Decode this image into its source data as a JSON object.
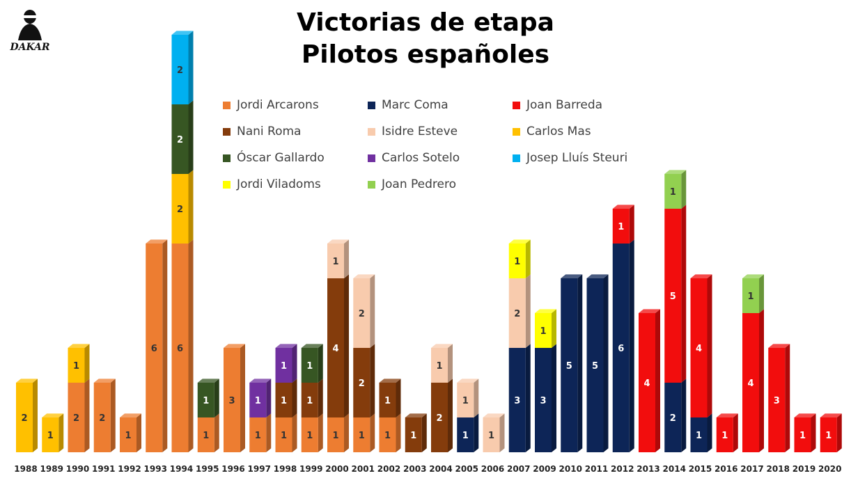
{
  "title_line1": "Victorias de etapa",
  "title_line2": "Pilotos españoles",
  "logo_text": "DAKAR",
  "colors": {
    "Jordi Arcarons": "#ED7D31",
    "Marc Coma": "#0D2557",
    "Joan Barreda": "#F20D0D",
    "Nani Roma": "#843C0C",
    "Isidre Esteve": "#F8CBAD",
    "Carlos Mas": "#FFC000",
    "Óscar Gallardo": "#375623",
    "Carlos Sotelo": "#7030A0",
    "Josep Lluís Steuri": "#00B0F0",
    "Jordi Viladoms": "#FFFF00",
    "Joan Pedrero": "#92D050"
  },
  "chart_data": {
    "type": "bar",
    "stacked": true,
    "title": "Victorias de etapa / Pilotos españoles",
    "legend_position": "top-center",
    "legend": [
      "Jordi Arcarons",
      "Marc Coma",
      "Joan Barreda",
      "Nani Roma",
      "Isidre Esteve",
      "Carlos Mas",
      "Óscar Gallardo",
      "Carlos Sotelo",
      "Josep Lluís Steuri",
      "Jordi Viladoms",
      "Joan Pedrero"
    ],
    "categories": [
      "1988",
      "1989",
      "1990",
      "1991",
      "1992",
      "1993",
      "1994",
      "1995",
      "1996",
      "1997",
      "1998",
      "1999",
      "2000",
      "2001",
      "2002",
      "2003",
      "2004",
      "2005",
      "2006",
      "2007",
      "2009",
      "2010",
      "2011",
      "2012",
      "2013",
      "2014",
      "2015",
      "2016",
      "2017",
      "2018",
      "2019",
      "2020"
    ],
    "stacks": [
      [
        [
          "Carlos Mas",
          2
        ]
      ],
      [
        [
          "Carlos Mas",
          1
        ]
      ],
      [
        [
          "Jordi Arcarons",
          2
        ],
        [
          "Carlos Mas",
          1
        ]
      ],
      [
        [
          "Jordi Arcarons",
          2
        ]
      ],
      [
        [
          "Jordi Arcarons",
          1
        ]
      ],
      [
        [
          "Jordi Arcarons",
          6
        ]
      ],
      [
        [
          "Jordi Arcarons",
          6
        ],
        [
          "Carlos Mas",
          2
        ],
        [
          "Óscar Gallardo",
          2
        ],
        [
          "Josep Lluís Steuri",
          2
        ]
      ],
      [
        [
          "Jordi Arcarons",
          1
        ],
        [
          "Óscar Gallardo",
          1
        ]
      ],
      [
        [
          "Jordi Arcarons",
          3
        ]
      ],
      [
        [
          "Jordi Arcarons",
          1
        ],
        [
          "Carlos Sotelo",
          1
        ]
      ],
      [
        [
          "Jordi Arcarons",
          1
        ],
        [
          "Nani Roma",
          1
        ],
        [
          "Carlos Sotelo",
          1
        ]
      ],
      [
        [
          "Jordi Arcarons",
          1
        ],
        [
          "Nani Roma",
          1
        ],
        [
          "Óscar Gallardo",
          1
        ]
      ],
      [
        [
          "Jordi Arcarons",
          1
        ],
        [
          "Nani Roma",
          4
        ],
        [
          "Isidre Esteve",
          1
        ]
      ],
      [
        [
          "Jordi Arcarons",
          1
        ],
        [
          "Nani Roma",
          2
        ],
        [
          "Isidre Esteve",
          2
        ]
      ],
      [
        [
          "Jordi Arcarons",
          1
        ],
        [
          "Nani Roma",
          1
        ]
      ],
      [
        [
          "Nani Roma",
          1
        ]
      ],
      [
        [
          "Nani Roma",
          2
        ],
        [
          "Isidre Esteve",
          1
        ]
      ],
      [
        [
          "Marc Coma",
          1
        ],
        [
          "Isidre Esteve",
          1
        ]
      ],
      [
        [
          "Isidre Esteve",
          1
        ]
      ],
      [
        [
          "Marc Coma",
          3
        ],
        [
          "Isidre Esteve",
          2
        ],
        [
          "Jordi Viladoms",
          1
        ]
      ],
      [
        [
          "Marc Coma",
          3
        ],
        [
          "Jordi Viladoms",
          1
        ]
      ],
      [
        [
          "Marc Coma",
          5
        ]
      ],
      [
        [
          "Marc Coma",
          5
        ]
      ],
      [
        [
          "Marc Coma",
          6
        ],
        [
          "Joan Barreda",
          1
        ]
      ],
      [
        [
          "Joan Barreda",
          4
        ]
      ],
      [
        [
          "Marc Coma",
          2
        ],
        [
          "Joan Barreda",
          5
        ],
        [
          "Joan Pedrero",
          1
        ]
      ],
      [
        [
          "Marc Coma",
          1
        ],
        [
          "Joan Barreda",
          4
        ]
      ],
      [
        [
          "Joan Barreda",
          1
        ]
      ],
      [
        [
          "Joan Barreda",
          4
        ],
        [
          "Joan Pedrero",
          1
        ]
      ],
      [
        [
          "Joan Barreda",
          3
        ]
      ],
      [
        [
          "Joan Barreda",
          1
        ]
      ],
      [
        [
          "Joan Barreda",
          1
        ]
      ]
    ]
  }
}
